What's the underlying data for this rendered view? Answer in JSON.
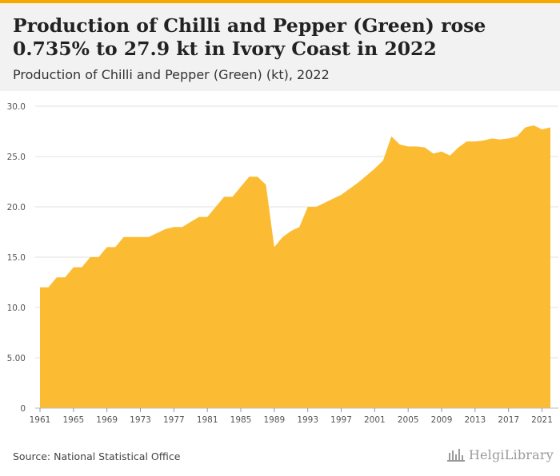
{
  "header": {
    "title": "Production of Chilli and Pepper (Green) rose 0.735% to 27.9 kt in Ivory Coast in 2022",
    "subtitle": "Production of Chilli and Pepper (Green) (kt), 2022"
  },
  "footer": {
    "source": "Source: National Statistical Office",
    "logo_text": "HelgiLibrary"
  },
  "colors": {
    "area_fill": "#fbbc33",
    "accent": "#f5a800",
    "grid": "#e2e2e2",
    "axis_text": "#555555"
  },
  "chart_data": {
    "type": "area",
    "title": "Production of Chilli and Pepper (Green) (kt), 2022",
    "xlabel": "",
    "ylabel": "",
    "series": [
      {
        "name": "",
        "x": [
          1961,
          1962,
          1963,
          1964,
          1965,
          1966,
          1967,
          1968,
          1969,
          1970,
          1971,
          1972,
          1973,
          1974,
          1975,
          1976,
          1977,
          1978,
          1979,
          1980,
          1981,
          1982,
          1983,
          1984,
          1985,
          1986,
          1987,
          1988,
          1989,
          1990,
          1991,
          1992,
          1993,
          1994,
          1995,
          1996,
          1997,
          1998,
          1999,
          2000,
          2001,
          2002,
          2003,
          2004,
          2005,
          2006,
          2007,
          2008,
          2009,
          2010,
          2011,
          2012,
          2013,
          2014,
          2015,
          2016,
          2017,
          2018,
          2019,
          2020,
          2021,
          2022
        ],
        "values": [
          12.0,
          12.0,
          13.0,
          13.0,
          14.0,
          14.0,
          15.0,
          15.0,
          16.0,
          16.0,
          17.0,
          17.0,
          17.0,
          17.0,
          17.4,
          17.8,
          18.0,
          18.0,
          18.5,
          19.0,
          19.0,
          20.0,
          21.0,
          21.0,
          22.0,
          23.0,
          23.0,
          22.2,
          16.0,
          17.0,
          17.6,
          18.0,
          20.0,
          20.0,
          20.4,
          20.8,
          21.2,
          21.8,
          22.4,
          23.1,
          23.8,
          24.6,
          27.0,
          26.2,
          26.0,
          26.0,
          25.9,
          25.3,
          25.5,
          25.1,
          25.9,
          26.5,
          26.5,
          26.6,
          26.8,
          26.7,
          26.8,
          27.0,
          27.9,
          28.1,
          27.7,
          27.9
        ]
      }
    ],
    "x_ticks": [
      "1961",
      "1965",
      "1969",
      "1973",
      "1977",
      "1981",
      "1985",
      "1989",
      "1993",
      "1997",
      "2001",
      "2005",
      "2009",
      "2013",
      "2017",
      "2021"
    ],
    "y_ticks": [
      "0",
      "5.00",
      "10.0",
      "15.0",
      "20.0",
      "25.0",
      "30.0"
    ],
    "ylim": [
      0,
      30
    ],
    "xlim": [
      1961,
      2022
    ],
    "grid": true,
    "legend": "none"
  }
}
